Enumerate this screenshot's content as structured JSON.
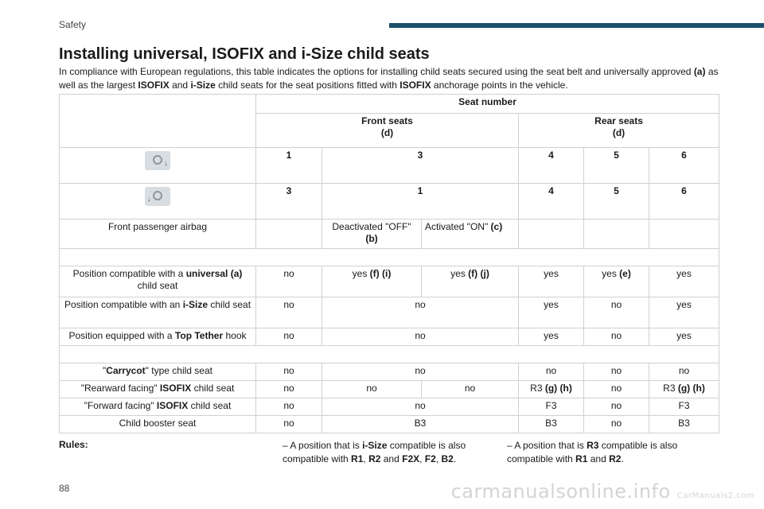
{
  "header": {
    "section": "Safety",
    "page_number": "88"
  },
  "title": "Installing universal, ISOFIX and i-Size child seats",
  "intro": {
    "p1": "In compliance with European regulations, this table indicates the options for installing child seats secured using the seat belt and universally approved ",
    "b1": "(a)",
    "p2": " as well as the largest ",
    "b2": "ISOFIX",
    "p3": " and ",
    "b3": "i-Size",
    "p4": " child seats for the seat positions fitted with ",
    "b4": "ISOFIX",
    "p5": " anchorage points in the vehicle."
  },
  "table": {
    "seat_number": "Seat number",
    "front_seats": "Front seats",
    "front_seats_note": "(d)",
    "rear_seats": "Rear seats",
    "rear_seats_note": "(d)",
    "lhd_row": [
      "1",
      "3",
      "4",
      "5",
      "6"
    ],
    "rhd_row": [
      "3",
      "1",
      "4",
      "5",
      "6"
    ],
    "icons": {
      "lhd": "left-hand-drive-steering-wheel-icon",
      "rhd": "right-hand-drive-steering-wheel-icon"
    },
    "airbag": {
      "label": "Front passenger airbag",
      "off": "Deactivated \"OFF\"",
      "off_note": "(b)",
      "on": "Activated \"ON\" ",
      "on_note": "(c)"
    },
    "universal": {
      "label_pre": "Position compatible with a ",
      "label_bold": "universal (a)",
      "label_post": " child seat",
      "c1": "no",
      "c2_txt": "yes ",
      "c2_b": "(f) (i)",
      "c3_txt": "yes ",
      "c3_b": "(f) (j)",
      "c4": "yes",
      "c5_txt": "yes ",
      "c5_b": "(e)",
      "c6": "yes"
    },
    "isize": {
      "label_pre": "Position compatible with an ",
      "label_bold": "i-Size",
      "label_post": " child seat",
      "c1": "no",
      "c2": "no",
      "c3": "yes",
      "c4": "no",
      "c5": "yes"
    },
    "tether": {
      "label_pre": "Position equipped with a ",
      "label_bold": "Top Tether",
      "label_post": " hook",
      "c1": "no",
      "c2": "no",
      "c3": "yes",
      "c4": "no",
      "c5": "yes"
    },
    "carrycot": {
      "label_q1": "\"",
      "label_bold": "Carrycot",
      "label_post": "\" type child seat",
      "c1": "no",
      "c2": "no",
      "c3": "no",
      "c4": "no",
      "c5": "no"
    },
    "rearward": {
      "label_pre": "\"Rearward facing\" ",
      "label_bold": "ISOFIX",
      "label_post": " child seat",
      "c1": "no",
      "c2": "no",
      "c3": "no",
      "c4_txt": "R3 ",
      "c4_b": "(g) (h)",
      "c5": "no",
      "c6_txt": "R3 ",
      "c6_b": "(g) (h)"
    },
    "forward": {
      "label_pre": "\"Forward facing\" ",
      "label_bold": "ISOFIX",
      "label_post": " child seat",
      "c1": "no",
      "c2": "no",
      "c3": "F3",
      "c4": "no",
      "c5": "F3"
    },
    "booster": {
      "label": "Child booster seat",
      "c1": "no",
      "c2": "B3",
      "c3": "B3",
      "c4": "no",
      "c5": "B3"
    }
  },
  "rules": {
    "heading": "Rules:",
    "note1_pre": "– A position that is ",
    "note1_b1": "i-Size",
    "note1_mid": " compatible is also compatible with ",
    "note1_b2": "R1",
    "note1_s1": ", ",
    "note1_b3": "R2",
    "note1_s2": " and ",
    "note1_b4": "F2X",
    "note1_s3": ", ",
    "note1_b5": "F2",
    "note1_s4": ", ",
    "note1_b6": "B2",
    "note1_end": ".",
    "note2_pre": "– A position that is ",
    "note2_b1": "R3",
    "note2_mid": " compatible is also compatible with ",
    "note2_b2": "R1",
    "note2_s1": " and ",
    "note2_b3": "R2",
    "note2_end": "."
  },
  "watermark": {
    "main": "carmanualsonline.info",
    "small": "CarManuals2.com"
  },
  "colors": {
    "accent_bar": "#1b4f6b",
    "grid_border": "#d0d0d0"
  }
}
